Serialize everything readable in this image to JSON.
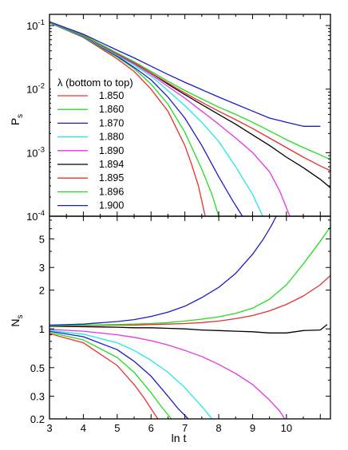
{
  "chart_data": [
    {
      "type": "line",
      "panel": "top",
      "ylabel": "P",
      "ylabel_sub": "s",
      "yscale": "log",
      "xlim": [
        3,
        11.3
      ],
      "ylim": [
        0.0001,
        0.15
      ],
      "xticks_shown": false,
      "yticks": [
        {
          "value": 0.1,
          "base": "10",
          "exp": "-1"
        },
        {
          "value": 0.01,
          "base": "10",
          "exp": "-2"
        },
        {
          "value": 0.001,
          "base": "10",
          "exp": "-3"
        },
        {
          "value": 0.0001,
          "base": "10",
          "exp": "-4"
        }
      ],
      "legend": {
        "title": "λ (bottom to top)",
        "placement": "left",
        "entries": [
          "1.850",
          "1.860",
          "1.870",
          "1.880",
          "1.890",
          "1.894",
          "1.895",
          "1.896",
          "1.900"
        ]
      },
      "series": [
        {
          "name": "1.850",
          "color": "#e8302e",
          "x": [
            3,
            4,
            5,
            5.5,
            6,
            6.5,
            7,
            7.2,
            7.4,
            7.6
          ],
          "y": [
            0.11,
            0.065,
            0.03,
            0.019,
            0.01,
            0.0045,
            0.0013,
            0.00065,
            0.0003,
            0.0001
          ]
        },
        {
          "name": "1.860",
          "color": "#22dd22",
          "x": [
            3,
            4,
            5,
            5.5,
            6,
            6.5,
            7,
            7.5,
            7.8,
            8
          ],
          "y": [
            0.11,
            0.066,
            0.032,
            0.021,
            0.012,
            0.0058,
            0.0021,
            0.00055,
            0.00022,
            0.0001
          ]
        },
        {
          "name": "1.870",
          "color": "#1c1ccc",
          "x": [
            3,
            4,
            5,
            5.5,
            6,
            6.5,
            7,
            7.5,
            8,
            8.4,
            8.7
          ],
          "y": [
            0.112,
            0.067,
            0.033,
            0.022,
            0.014,
            0.0075,
            0.0035,
            0.0013,
            0.00042,
            0.00018,
            0.0001
          ]
        },
        {
          "name": "1.880",
          "color": "#22e8e8",
          "x": [
            3,
            4,
            5,
            5.5,
            6,
            6.5,
            7,
            7.5,
            8,
            8.5,
            9,
            9.3
          ],
          "y": [
            0.112,
            0.068,
            0.034,
            0.024,
            0.016,
            0.0095,
            0.0055,
            0.003,
            0.0015,
            0.0006,
            0.00022,
            0.0001
          ]
        },
        {
          "name": "1.890",
          "color": "#e633e6",
          "x": [
            3,
            4,
            5,
            5.5,
            6,
            6.5,
            7,
            7.5,
            8,
            8.5,
            9,
            9.5,
            9.8,
            10.1
          ],
          "y": [
            0.113,
            0.069,
            0.035,
            0.025,
            0.017,
            0.011,
            0.0072,
            0.0045,
            0.0028,
            0.0017,
            0.001,
            0.0005,
            0.00025,
            0.0001
          ]
        },
        {
          "name": "1.894",
          "color": "#000000",
          "x": [
            3,
            4,
            5,
            5.5,
            6,
            6.5,
            7,
            7.5,
            8,
            8.5,
            9,
            9.5,
            10,
            10.5,
            11,
            11.3
          ],
          "y": [
            0.114,
            0.07,
            0.036,
            0.026,
            0.018,
            0.012,
            0.0082,
            0.0057,
            0.004,
            0.0028,
            0.0019,
            0.0013,
            0.00085,
            0.00058,
            0.00038,
            0.00028
          ]
        },
        {
          "name": "1.895",
          "color": "#e8302e",
          "x": [
            3,
            4,
            5,
            5.5,
            6,
            6.5,
            7,
            7.5,
            8,
            8.5,
            9,
            9.5,
            10,
            10.5,
            11,
            11.3
          ],
          "y": [
            0.114,
            0.07,
            0.036,
            0.026,
            0.018,
            0.0125,
            0.0087,
            0.0062,
            0.0045,
            0.0033,
            0.0024,
            0.0017,
            0.0012,
            0.00085,
            0.00062,
            0.00052
          ]
        },
        {
          "name": "1.896",
          "color": "#22dd22",
          "x": [
            3,
            4,
            5,
            5.5,
            6,
            6.5,
            7,
            7.5,
            8,
            8.5,
            9,
            9.5,
            10,
            10.5,
            11,
            11.3
          ],
          "y": [
            0.114,
            0.071,
            0.037,
            0.027,
            0.019,
            0.0133,
            0.0095,
            0.007,
            0.0052,
            0.004,
            0.003,
            0.0022,
            0.0016,
            0.0012,
            0.00092,
            0.00078
          ]
        },
        {
          "name": "1.900",
          "color": "#1c1ccc",
          "x": [
            3,
            4,
            5,
            5.5,
            6,
            6.5,
            7,
            7.5,
            8,
            8.5,
            9,
            9.5,
            10,
            10.5,
            11
          ],
          "y": [
            0.115,
            0.073,
            0.041,
            0.031,
            0.023,
            0.017,
            0.0128,
            0.0098,
            0.0075,
            0.0058,
            0.0045,
            0.0035,
            0.003,
            0.0026,
            0.0026
          ]
        }
      ]
    },
    {
      "type": "line",
      "panel": "bottom",
      "xlabel": "ln t",
      "ylabel": "N",
      "ylabel_sub": "s",
      "yscale": "log",
      "xlim": [
        3,
        11.3
      ],
      "ylim": [
        0.2,
        7.5
      ],
      "xticks": [
        3,
        4,
        5,
        6,
        7,
        8,
        9,
        10
      ],
      "xtick_labels": [
        "3",
        "4",
        "5",
        "6",
        "7",
        "8",
        "9",
        "10"
      ],
      "yticks": [
        0.2,
        0.3,
        0.5,
        1,
        2,
        3,
        5
      ],
      "ytick_labels": [
        "0.2",
        "0.3",
        "0.5",
        "1",
        "2",
        "3",
        "5"
      ],
      "series": [
        {
          "name": "1.850",
          "color": "#e8302e",
          "x": [
            3,
            4,
            5,
            5.5,
            5.8,
            6,
            6.2
          ],
          "y": [
            0.92,
            0.78,
            0.52,
            0.37,
            0.29,
            0.24,
            0.2
          ]
        },
        {
          "name": "1.860",
          "color": "#22dd22",
          "x": [
            3,
            4,
            5,
            5.5,
            6,
            6.3,
            6.6
          ],
          "y": [
            0.94,
            0.82,
            0.6,
            0.46,
            0.32,
            0.25,
            0.2
          ]
        },
        {
          "name": "1.870",
          "color": "#1c1ccc",
          "x": [
            3,
            4,
            5,
            5.5,
            6,
            6.5,
            6.8,
            7.1
          ],
          "y": [
            0.96,
            0.87,
            0.69,
            0.56,
            0.43,
            0.3,
            0.24,
            0.2
          ]
        },
        {
          "name": "1.880",
          "color": "#22e8e8",
          "x": [
            3,
            4,
            5,
            5.5,
            6,
            6.5,
            7,
            7.5,
            7.8
          ],
          "y": [
            0.97,
            0.91,
            0.78,
            0.68,
            0.57,
            0.46,
            0.35,
            0.25,
            0.2
          ]
        },
        {
          "name": "1.890",
          "color": "#e633e6",
          "x": [
            3,
            4,
            5,
            5.5,
            6,
            6.5,
            7,
            7.5,
            8,
            8.5,
            9,
            9.5,
            9.8,
            9.95
          ],
          "y": [
            0.99,
            0.96,
            0.9,
            0.86,
            0.81,
            0.75,
            0.68,
            0.61,
            0.53,
            0.45,
            0.37,
            0.28,
            0.23,
            0.2
          ]
        },
        {
          "name": "1.894",
          "color": "#000000",
          "x": [
            3,
            4,
            5,
            5.5,
            6,
            6.5,
            7,
            7.5,
            8,
            8.5,
            9,
            9.5,
            10,
            10.5,
            11,
            11.2
          ],
          "y": [
            1.05,
            1.04,
            1.03,
            1.02,
            1.02,
            1.01,
            1.0,
            0.98,
            0.97,
            0.96,
            0.95,
            0.93,
            0.93,
            0.97,
            0.98,
            1.08
          ]
        },
        {
          "name": "1.895",
          "color": "#e8302e",
          "x": [
            3,
            4,
            5,
            5.5,
            6,
            6.5,
            7,
            7.5,
            8,
            8.5,
            9,
            9.5,
            10,
            10.5,
            11,
            11.3
          ],
          "y": [
            1.06,
            1.06,
            1.07,
            1.07,
            1.08,
            1.09,
            1.1,
            1.12,
            1.15,
            1.2,
            1.27,
            1.38,
            1.55,
            1.8,
            2.2,
            2.6
          ]
        },
        {
          "name": "1.896",
          "color": "#22dd22",
          "x": [
            3,
            4,
            5,
            5.5,
            6,
            6.5,
            7,
            7.5,
            8,
            8.5,
            9,
            9.5,
            10,
            10.5,
            11,
            11.3
          ],
          "y": [
            1.06,
            1.07,
            1.08,
            1.09,
            1.1,
            1.12,
            1.15,
            1.19,
            1.24,
            1.32,
            1.45,
            1.7,
            2.2,
            3.2,
            4.8,
            6.2
          ]
        },
        {
          "name": "1.900",
          "color": "#1c1ccc",
          "x": [
            3,
            4,
            5,
            5.5,
            6,
            6.5,
            7,
            7.5,
            8,
            8.5,
            9,
            9.3,
            9.55,
            9.7
          ],
          "y": [
            1.07,
            1.09,
            1.14,
            1.18,
            1.25,
            1.35,
            1.5,
            1.75,
            2.1,
            2.7,
            3.8,
            4.9,
            6.3,
            7.5
          ]
        }
      ]
    }
  ]
}
